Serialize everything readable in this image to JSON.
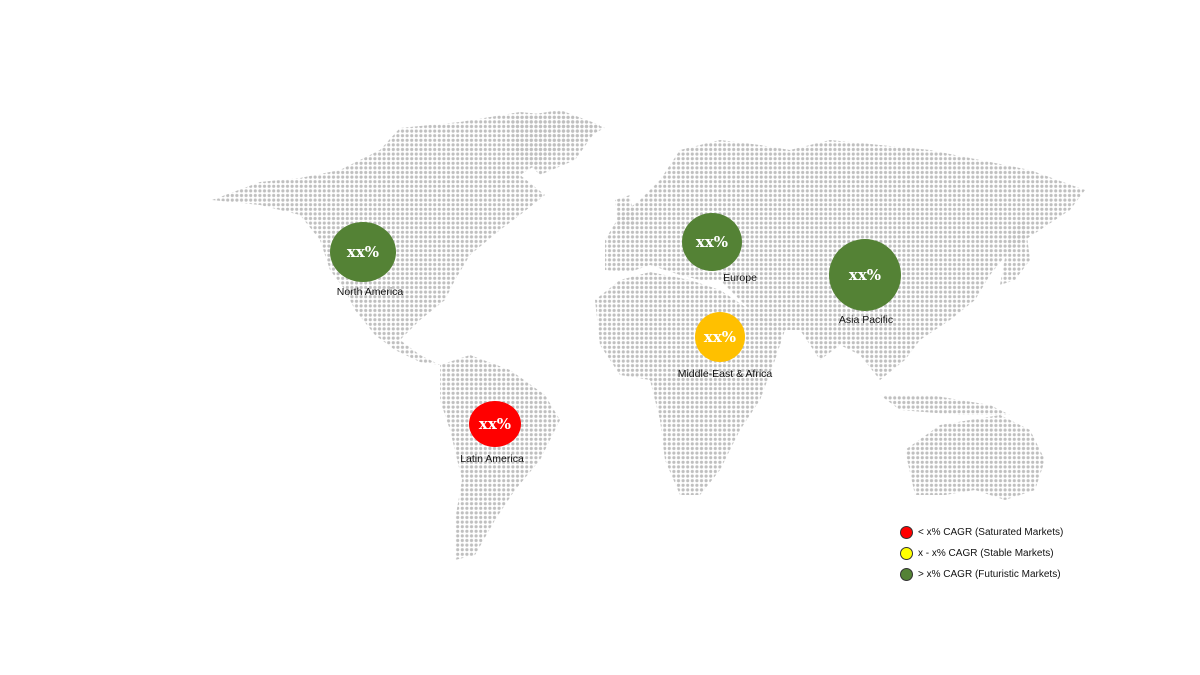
{
  "regions": [
    {
      "name": "North America",
      "value": "xx%",
      "color": "#548235"
    },
    {
      "name": "Europe",
      "value": "xx%",
      "color": "#548235"
    },
    {
      "name": "Asia Pacific",
      "value": "xx%",
      "color": "#548235"
    },
    {
      "name": "Middle-East & Africa",
      "value": "xx%",
      "color": "#FFC000"
    },
    {
      "name": "Latin America",
      "value": "xx%",
      "color": "#FF0000"
    }
  ],
  "legend": [
    {
      "label": "< x% CAGR (Saturated Markets)",
      "color": "#FF0000"
    },
    {
      "label": "x - x% CAGR (Stable Markets)",
      "color": "#FFFF00"
    },
    {
      "label": "> x% CAGR (Futuristic Markets)",
      "color": "#548235"
    }
  ],
  "map_dot_color": "#BFBFBF"
}
